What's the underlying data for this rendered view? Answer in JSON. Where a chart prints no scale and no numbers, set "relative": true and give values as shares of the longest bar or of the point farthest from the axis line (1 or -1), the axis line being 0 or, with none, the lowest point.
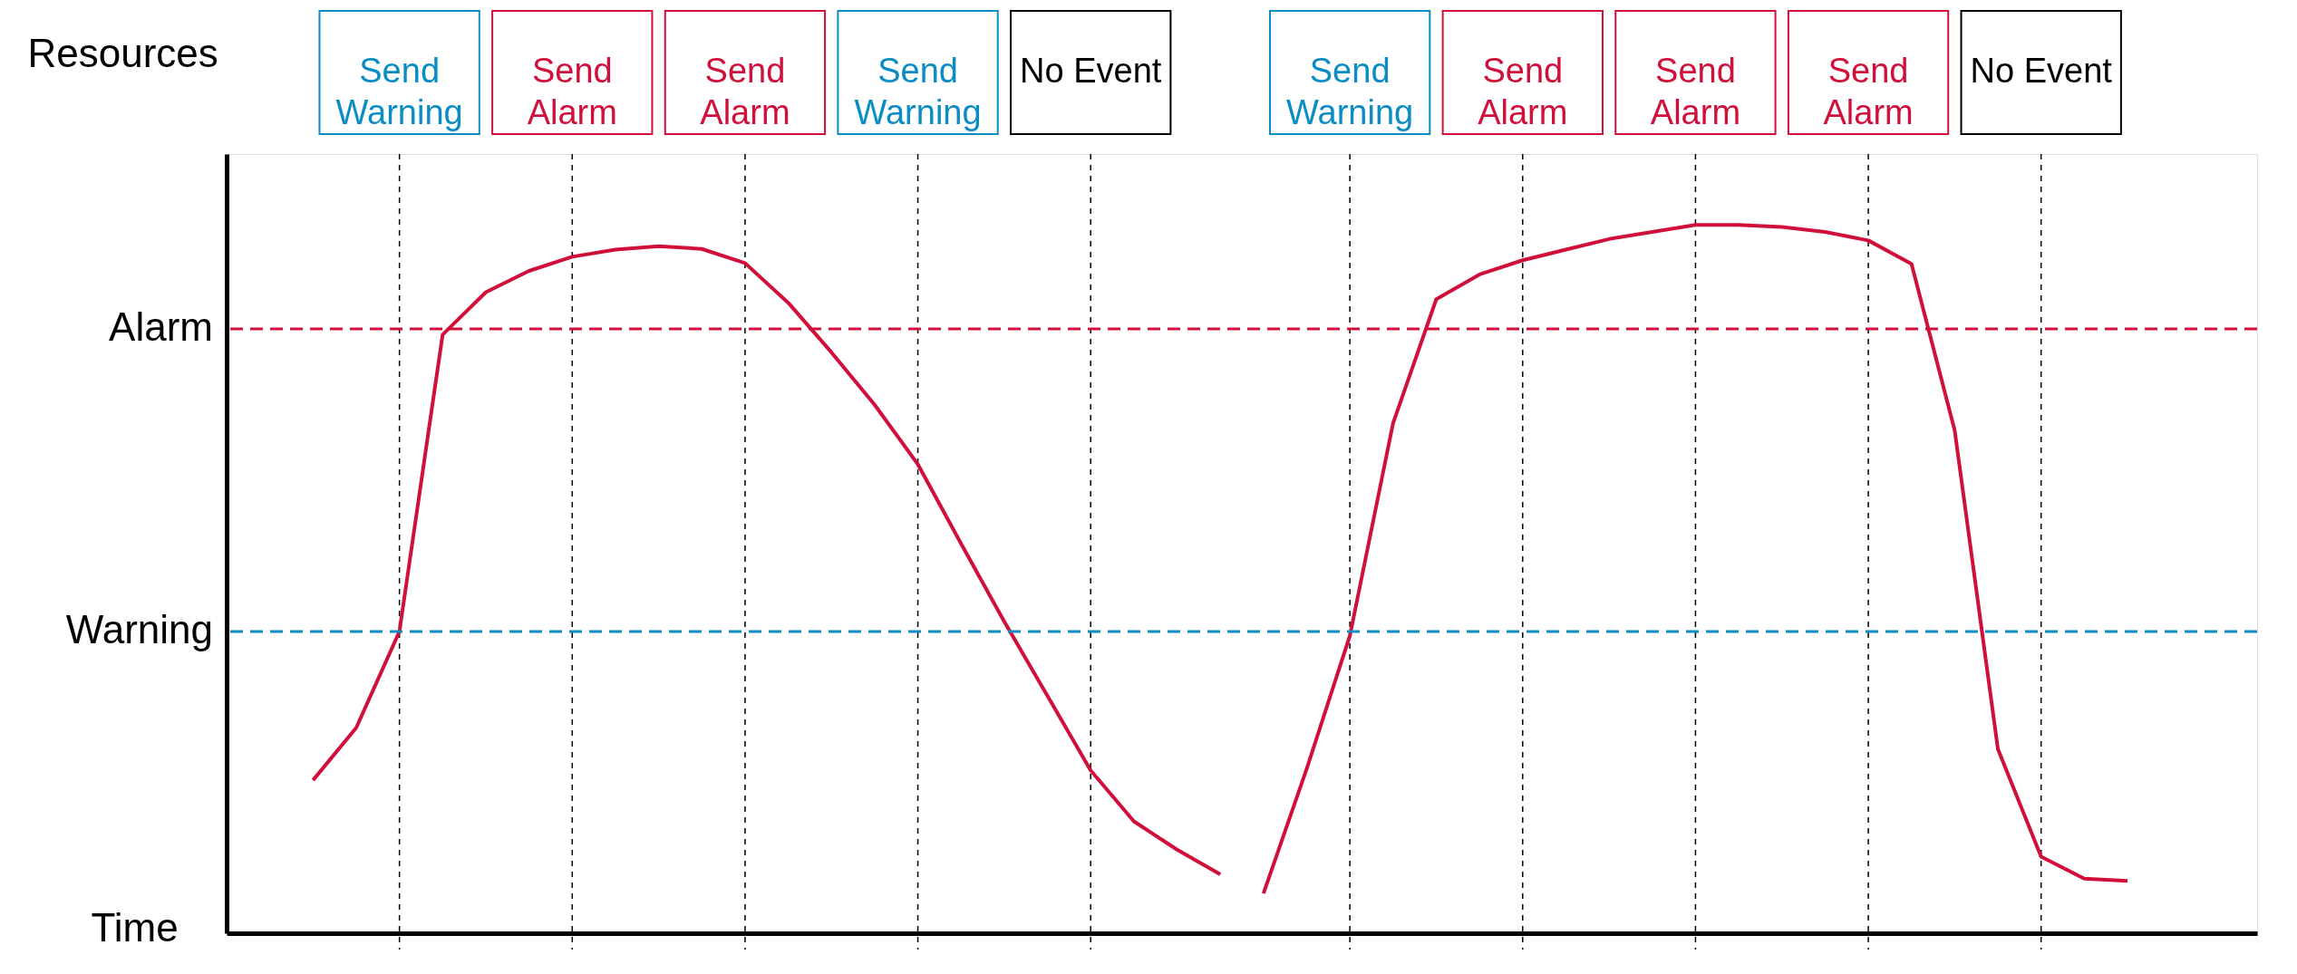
{
  "chart_data": {
    "type": "line",
    "relative": true,
    "xlabel": "Time",
    "ylabel": "Resources",
    "categories": [
      null,
      null,
      null,
      null,
      null,
      null,
      null,
      null,
      null,
      null,
      null,
      null,
      null,
      null,
      null,
      null,
      null,
      null,
      null,
      null,
      null,
      null,
      null,
      null,
      null,
      null,
      null,
      null,
      null,
      null,
      null,
      null,
      null,
      null,
      null,
      null,
      null,
      null,
      null,
      null,
      null,
      null,
      null,
      null,
      null,
      null,
      null,
      null
    ],
    "grid": "x",
    "line_style": "solid",
    "marker": "none",
    "legend": false,
    "series": [
      {
        "color": "#d0103a",
        "values": [
          null,
          null,
          0.216,
          0.29,
          0.426,
          0.845,
          0.905,
          0.935,
          0.955,
          0.965,
          0.97,
          0.966,
          0.946,
          0.89,
          0.82,
          0.746,
          0.662,
          0.55,
          0.44,
          0.335,
          0.23,
          0.158,
          0.118,
          0.083,
          null,
          null,
          null,
          null,
          null,
          null,
          null,
          null,
          null,
          null,
          null,
          null,
          null,
          null,
          null,
          null,
          null,
          null,
          null,
          null,
          null,
          null,
          null,
          null
        ]
      },
      {
        "color": "#d0103a",
        "values": [
          null,
          null,
          null,
          null,
          null,
          null,
          null,
          null,
          null,
          null,
          null,
          null,
          null,
          null,
          null,
          null,
          null,
          null,
          null,
          null,
          null,
          null,
          null,
          null,
          0.056,
          0.232,
          0.42,
          0.72,
          0.895,
          0.93,
          0.95,
          0.965,
          0.98,
          0.99,
          1.0,
          1.0,
          0.997,
          0.99,
          0.978,
          0.945,
          0.71,
          0.26,
          0.108,
          0.077,
          0.074,
          null,
          null,
          null
        ]
      }
    ],
    "ref_lines": [
      {
        "axis": "y",
        "value": 0.853,
        "label": "Alarm",
        "color": "#d0103a",
        "line_style": "dashed"
      },
      {
        "axis": "y",
        "value": 0.426,
        "label": "Warning",
        "color": "#0a8cc4",
        "line_style": "dashed"
      }
    ],
    "annotations": [
      "Send\nWarning",
      "Send\nAlarm",
      "Send\nAlarm",
      "Send\nWarning",
      "No Event",
      "Send\nWarning",
      "Send\nAlarm",
      "Send\nAlarm",
      "Send\nAlarm",
      "No Event"
    ]
  }
}
